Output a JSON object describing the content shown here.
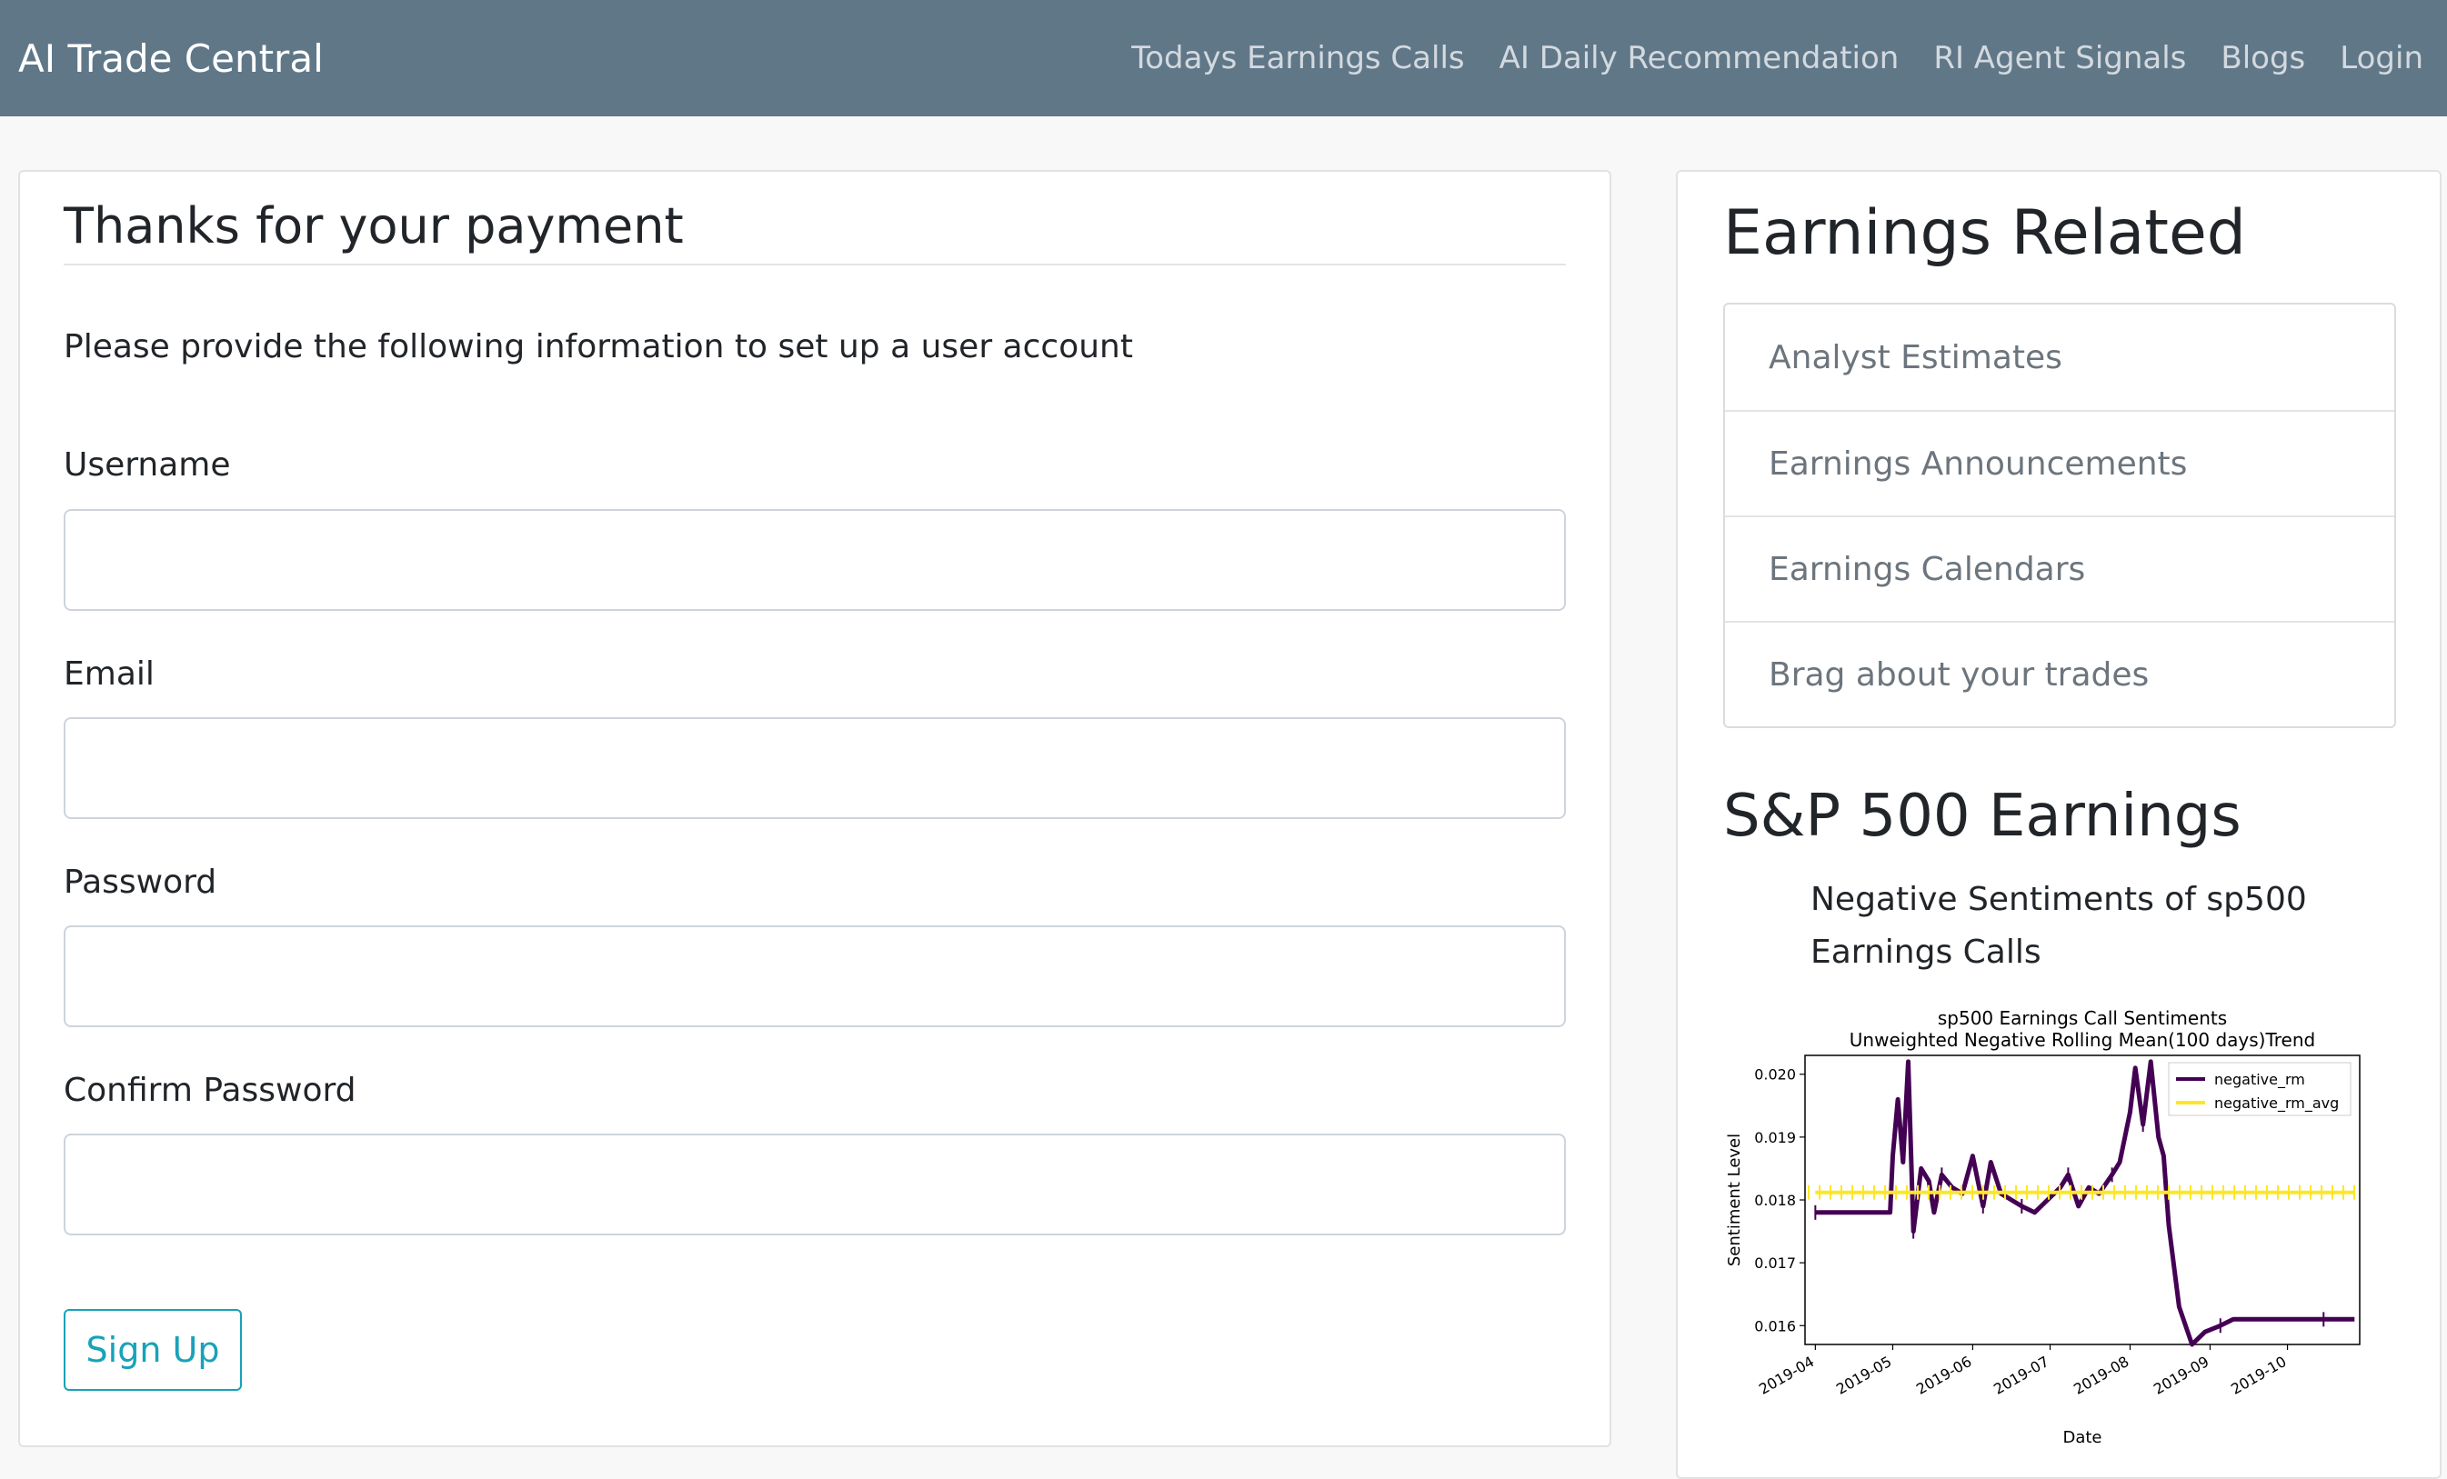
{
  "navbar": {
    "brand": "AI Trade Central",
    "links": [
      "Todays Earnings Calls",
      "AI Daily Recommendation",
      "RI Agent Signals",
      "Blogs",
      "Login"
    ]
  },
  "form": {
    "title": "Thanks for your payment",
    "intro": "Please provide the following information to set up a user account",
    "fields": [
      {
        "label": "Username",
        "value": "",
        "placeholder": ""
      },
      {
        "label": "Email",
        "value": "",
        "placeholder": ""
      },
      {
        "label": "Password",
        "value": "",
        "placeholder": ""
      },
      {
        "label": "Confirm Password",
        "value": "",
        "placeholder": ""
      }
    ],
    "submit_label": "Sign Up"
  },
  "sidebar": {
    "earnings_title": "Earnings Related",
    "earnings_links": [
      "Analyst Estimates",
      "Earnings Announcements",
      "Earnings Calendars",
      "Brag about your trades"
    ],
    "sp500_title": "S&P 500 Earnings",
    "chart_caption": "Negative Sentiments of sp500 Earnings Calls"
  },
  "colors": {
    "navbar_bg": "#607788",
    "button_accent": "#17a2b8",
    "series_negative_rm": "#440154",
    "series_negative_rm_avg": "#fde725"
  },
  "chart_data": {
    "type": "line",
    "title": "sp500 Earnings Call Sentiments\nUnweighted Negative Rolling Mean(100 days)Trend",
    "xlabel": "Date",
    "ylabel": "Sentiment Level",
    "x_ticks": [
      "2019-04",
      "2019-05",
      "2019-06",
      "2019-07",
      "2019-08",
      "2019-09",
      "2019-10"
    ],
    "y_ticks": [
      "0.016",
      "0.017",
      "0.018",
      "0.019",
      "0.020"
    ],
    "ylim": [
      0.0157,
      0.0203
    ],
    "legend_position": "top-right",
    "series": [
      {
        "name": "negative_rm",
        "color": "#440154",
        "x": [
          "2019-04-01",
          "2019-04-10",
          "2019-04-20",
          "2019-04-30",
          "2019-05-01",
          "2019-05-03",
          "2019-05-05",
          "2019-05-07",
          "2019-05-09",
          "2019-05-12",
          "2019-05-15",
          "2019-05-17",
          "2019-05-20",
          "2019-05-24",
          "2019-05-28",
          "2019-06-01",
          "2019-06-05",
          "2019-06-08",
          "2019-06-12",
          "2019-06-16",
          "2019-06-20",
          "2019-06-25",
          "2019-06-30",
          "2019-07-05",
          "2019-07-08",
          "2019-07-12",
          "2019-07-16",
          "2019-07-20",
          "2019-07-25",
          "2019-07-28",
          "2019-08-01",
          "2019-08-03",
          "2019-08-06",
          "2019-08-09",
          "2019-08-12",
          "2019-08-14",
          "2019-08-16",
          "2019-08-20",
          "2019-08-25",
          "2019-08-30",
          "2019-09-05",
          "2019-09-10",
          "2019-09-20",
          "2019-10-01",
          "2019-10-15",
          "2019-10-27"
        ],
        "values": [
          0.0178,
          0.0178,
          0.0178,
          0.0178,
          0.0187,
          0.0196,
          0.0186,
          0.0202,
          0.0175,
          0.0185,
          0.0183,
          0.0178,
          0.0184,
          0.0182,
          0.0181,
          0.0187,
          0.0179,
          0.0186,
          0.0181,
          0.018,
          0.0179,
          0.0178,
          0.018,
          0.0182,
          0.0184,
          0.0179,
          0.0182,
          0.0181,
          0.0184,
          0.0186,
          0.0194,
          0.0201,
          0.0192,
          0.0202,
          0.019,
          0.0187,
          0.0176,
          0.0163,
          0.0157,
          0.0159,
          0.016,
          0.0161,
          0.0161,
          0.0161,
          0.0161,
          0.0161
        ]
      },
      {
        "name": "negative_rm_avg",
        "color": "#fde725",
        "x": [
          "2019-04-01",
          "2019-10-27"
        ],
        "values": [
          0.01812,
          0.01812
        ]
      }
    ]
  }
}
